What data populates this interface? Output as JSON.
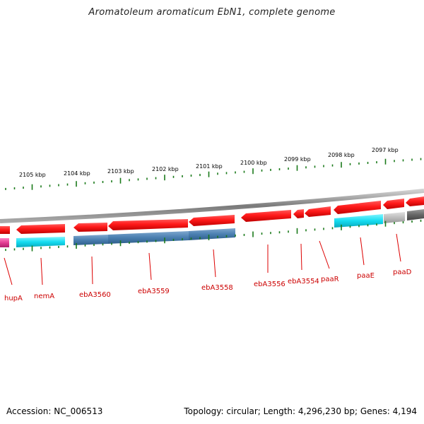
{
  "title": "Aromatoleum aromaticum EbN1, complete genome",
  "footer": {
    "accession": "Accession: NC_006513",
    "summary": "Topology: circular; Length: 4,296,230 bp; Genes: 4,194"
  },
  "colors": {
    "gene_red": "#e8262b",
    "gene_red_dark": "#c40f14",
    "cds_cyan": "#1fd7e6",
    "cds_steel": "#4a7fb0",
    "cds_grey": "#6a6a6a",
    "cds_lightgrey": "#b8b8b8",
    "cds_pink": "#e23d93",
    "backbone": "#8a8a8a",
    "tick_green": "#1a7a1a",
    "label_red": "#cc0000"
  },
  "kbp_labels": [
    "2105 kbp",
    "2104 kbp",
    "2103 kbp",
    "2102 kbp",
    "2101 kbp",
    "2100 kbp",
    "2099 kbp",
    "2098 kbp",
    "2097 kbp"
  ],
  "gene_labels": [
    "hupA",
    "nemA",
    "ebA3560",
    "ebA3559",
    "ebA3558",
    "ebA3556",
    "ebA3554",
    "paaR",
    "paaE",
    "paaD"
  ]
}
